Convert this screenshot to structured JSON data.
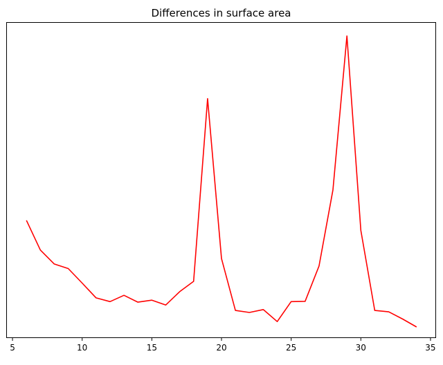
{
  "chart_data": {
    "type": "line",
    "title": "Differences in surface area",
    "xlabel": "",
    "ylabel": "",
    "xlim": [
      4.6,
      35.4
    ],
    "ylim": [
      0,
      100
    ],
    "x_ticks": [
      5,
      10,
      15,
      20,
      25,
      30,
      35
    ],
    "y_ticks": [],
    "grid": false,
    "legend": "none",
    "series": [
      {
        "color": "#ff0000",
        "x": [
          6,
          7,
          8,
          9,
          10,
          11,
          12,
          13,
          14,
          15,
          16,
          17,
          18,
          19,
          20,
          21,
          22,
          23,
          24,
          25,
          26,
          27,
          28,
          29,
          30,
          31,
          32,
          33,
          34
        ],
        "y": [
          37.4,
          27.0,
          22.1,
          20.5,
          15.4,
          10.2,
          8.9,
          11.1,
          8.7,
          9.4,
          7.7,
          12.4,
          16.0,
          80.1,
          24.0,
          5.8,
          5.1,
          6.1,
          1.9,
          8.9,
          9.0,
          21.4,
          48.1,
          102.1,
          33.9,
          5.8,
          5.3,
          2.8,
          0.0
        ]
      }
    ]
  }
}
